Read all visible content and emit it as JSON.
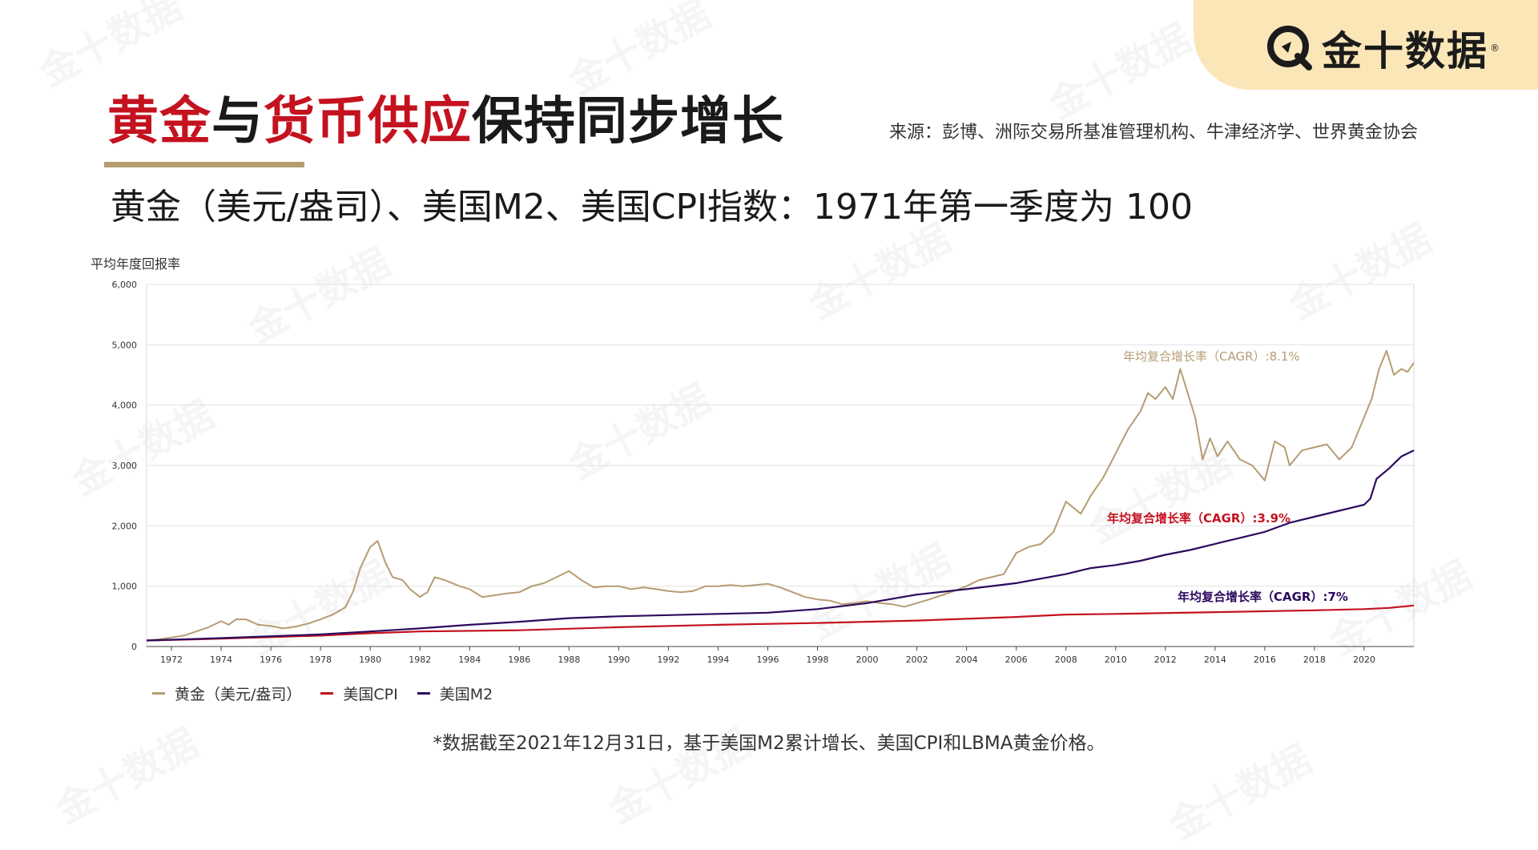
{
  "logo": {
    "text": "金十数据",
    "reg": "®"
  },
  "watermark": "金十数据",
  "title": {
    "part1": "黄金",
    "part2": "与",
    "part3": "货币供应",
    "part4": "保持同步增长"
  },
  "source": "来源：彭博、洲际交易所基准管理机构、牛津经济学、世界黄金协会",
  "subtitle": "黄金（美元/盎司）、美国M2、美国CPI指数：1971年第一季度为 100",
  "footnote": "*数据截至2021年12月31日，基于美国M2累计增长、美国CPI和LBMA黄金价格。",
  "colors": {
    "gold": "#b59d72",
    "cpi": "#c4121f",
    "m2": "#2d0a5e",
    "accent_red": "#c4121f"
  },
  "chart_data": {
    "type": "line",
    "ylabel": "平均年度回报率",
    "ylim": [
      0,
      6000
    ],
    "xlim": [
      1971,
      2022
    ],
    "y_ticks": [
      0,
      1000,
      2000,
      3000,
      4000,
      5000,
      6000
    ],
    "y_tick_labels": [
      "0",
      "1,000",
      "2,000",
      "3,000",
      "4,000",
      "5,000",
      "6,000"
    ],
    "x_ticks": [
      1972,
      1974,
      1976,
      1978,
      1980,
      1982,
      1984,
      1986,
      1988,
      1990,
      1992,
      1994,
      1996,
      1998,
      2000,
      2002,
      2004,
      2006,
      2008,
      2010,
      2012,
      2014,
      2016,
      2018,
      2020
    ],
    "grid": true,
    "legend_position": "bottom-left",
    "series": [
      {
        "name": "黄金（美元/盎司）",
        "color": "#b59d72",
        "annotation": "年均复合增长率（CAGR）:8.1%",
        "x": [
          1971,
          1971.5,
          1972,
          1972.5,
          1973,
          1973.5,
          1974,
          1974.3,
          1974.6,
          1975,
          1975.5,
          1976,
          1976.5,
          1977,
          1977.5,
          1978,
          1978.5,
          1979,
          1979.3,
          1979.6,
          1980,
          1980.3,
          1980.6,
          1980.9,
          1981.3,
          1981.6,
          1982,
          1982.3,
          1982.6,
          1983,
          1983.3,
          1983.6,
          1984,
          1984.5,
          1985,
          1985.5,
          1986,
          1986.5,
          1987,
          1987.5,
          1988,
          1988.5,
          1989,
          1989.5,
          1990,
          1990.5,
          1991,
          1991.5,
          1992,
          1992.5,
          1993,
          1993.5,
          1994,
          1994.5,
          1995,
          1995.5,
          1996,
          1996.5,
          1997,
          1997.5,
          1998,
          1998.5,
          1999,
          1999.5,
          2000,
          2000.5,
          2001,
          2001.5,
          2002,
          2002.5,
          2003,
          2003.5,
          2004,
          2004.5,
          2005,
          2005.5,
          2006,
          2006.5,
          2007,
          2007.5,
          2008,
          2008.3,
          2008.6,
          2009,
          2009.5,
          2010,
          2010.5,
          2011,
          2011.3,
          2011.6,
          2012,
          2012.3,
          2012.6,
          2012.9,
          2013.2,
          2013.5,
          2013.8,
          2014.1,
          2014.5,
          2015,
          2015.5,
          2016,
          2016.4,
          2016.8,
          2017,
          2017.5,
          2018,
          2018.5,
          2019,
          2019.5,
          2020,
          2020.3,
          2020.6,
          2020.9,
          2021.2,
          2021.5,
          2021.75,
          2022
        ],
        "values": [
          100,
          120,
          150,
          180,
          250,
          320,
          420,
          360,
          450,
          450,
          360,
          340,
          300,
          330,
          380,
          450,
          530,
          650,
          900,
          1300,
          1650,
          1750,
          1400,
          1150,
          1100,
          950,
          820,
          900,
          1150,
          1100,
          1050,
          1000,
          950,
          820,
          850,
          880,
          900,
          1000,
          1050,
          1150,
          1250,
          1100,
          980,
          1000,
          1000,
          950,
          980,
          950,
          920,
          900,
          920,
          1000,
          1000,
          1020,
          1000,
          1020,
          1040,
          980,
          900,
          820,
          780,
          760,
          700,
          720,
          750,
          720,
          700,
          660,
          720,
          780,
          850,
          920,
          1000,
          1100,
          1150,
          1200,
          1550,
          1650,
          1700,
          1900,
          2400,
          2300,
          2200,
          2500,
          2800,
          3200,
          3600,
          3900,
          4200,
          4100,
          4300,
          4100,
          4600,
          4200,
          3800,
          3100,
          3450,
          3150,
          3400,
          3100,
          3000,
          2750,
          3400,
          3300,
          3000,
          3250,
          3300,
          3350,
          3100,
          3300,
          3800,
          4100,
          4600,
          4900,
          4500,
          4600,
          4550,
          4700
        ]
      },
      {
        "name": "美国CPI",
        "color": "#c4121f",
        "annotation": "年均复合增长率（CAGR）:3.9%",
        "x": [
          1971,
          1974,
          1978,
          1980,
          1982,
          1986,
          1990,
          1994,
          1998,
          2002,
          2006,
          2008,
          2010,
          2014,
          2018,
          2020,
          2021,
          2022
        ],
        "values": [
          100,
          130,
          180,
          220,
          250,
          270,
          320,
          360,
          390,
          430,
          490,
          530,
          540,
          570,
          600,
          620,
          640,
          680
        ]
      },
      {
        "name": "美国M2",
        "color": "#2d0a5e",
        "annotation": "年均复合增长率（CAGR）:7%",
        "x": [
          1971,
          1974,
          1978,
          1980,
          1982,
          1984,
          1986,
          1988,
          1990,
          1992,
          1994,
          1996,
          1998,
          2000,
          2002,
          2004,
          2006,
          2008,
          2009,
          2010,
          2011,
          2012,
          2013,
          2014,
          2015,
          2016,
          2017,
          2018,
          2019,
          2020,
          2020.25,
          2020.5,
          2021,
          2021.5,
          2022
        ],
        "values": [
          100,
          140,
          200,
          250,
          300,
          360,
          410,
          470,
          500,
          520,
          540,
          560,
          620,
          720,
          860,
          950,
          1050,
          1200,
          1300,
          1350,
          1420,
          1520,
          1600,
          1700,
          1800,
          1900,
          2050,
          2150,
          2250,
          2350,
          2450,
          2780,
          2950,
          3150,
          3250
        ]
      }
    ]
  }
}
